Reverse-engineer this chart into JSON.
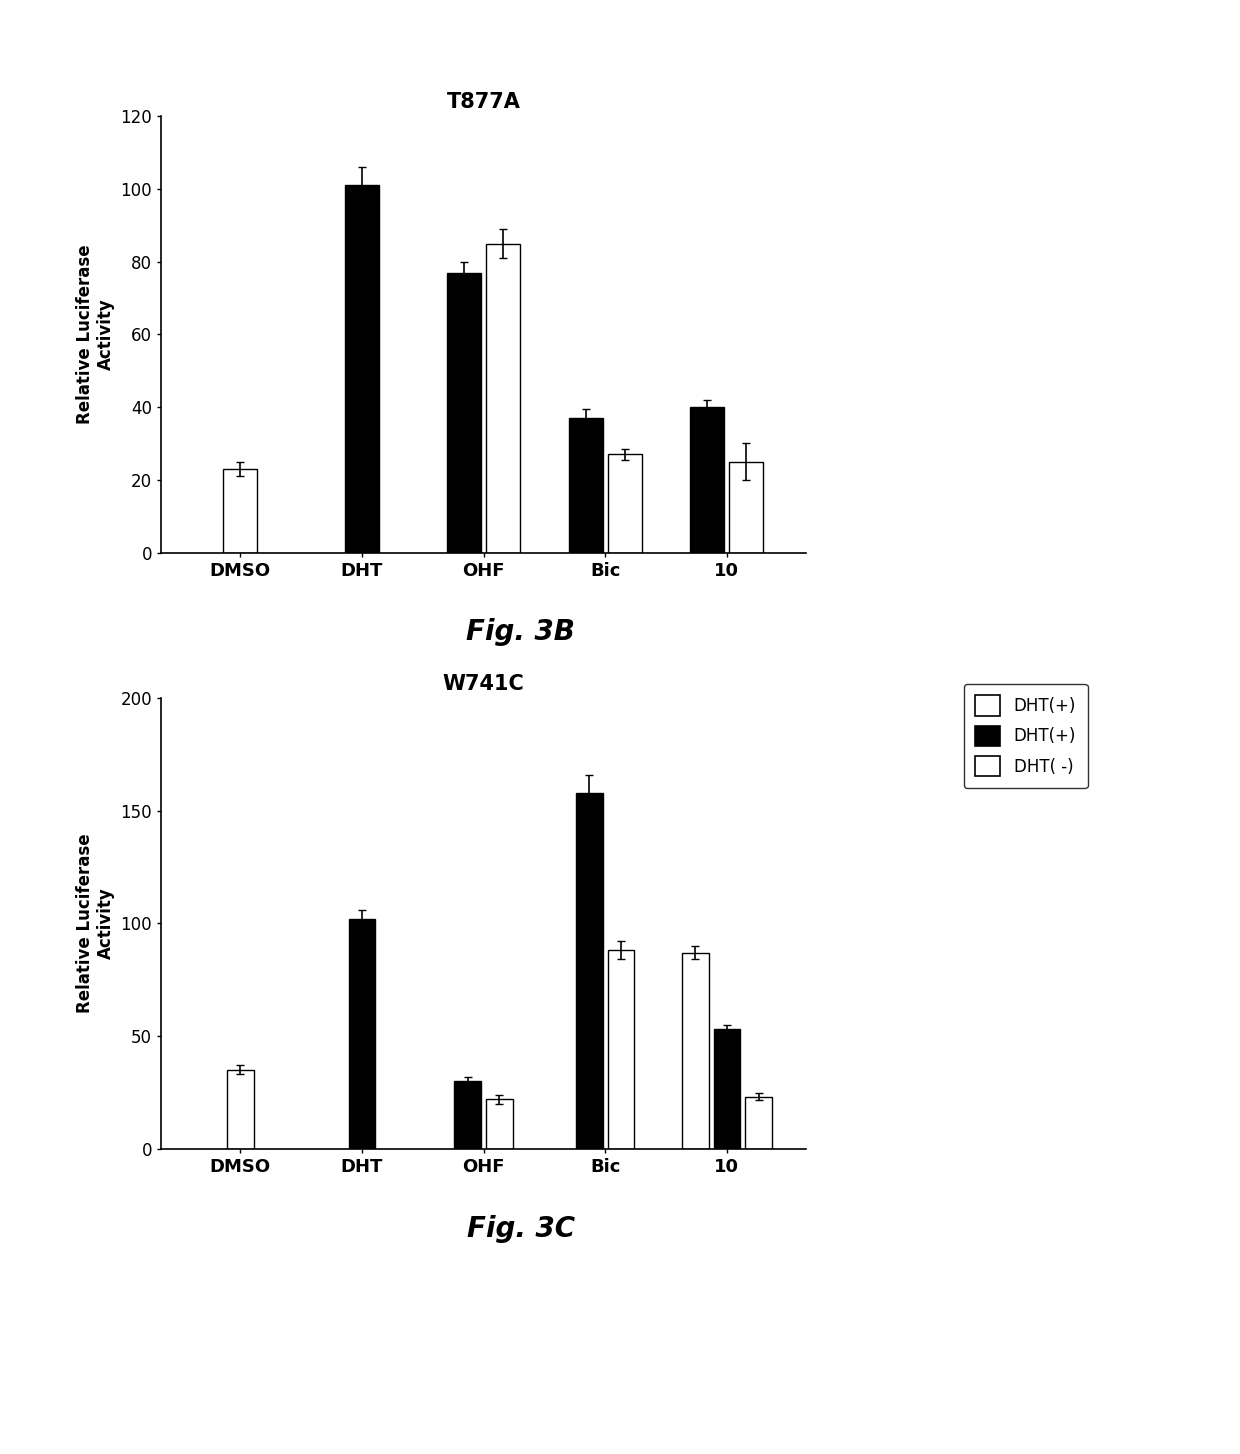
{
  "top": {
    "title": "T877A",
    "ylabel": "Relative Luciferase\nActivity",
    "categories": [
      "DMSO",
      "DHT",
      "OHF",
      "Bic",
      "10"
    ],
    "black_values": [
      null,
      101,
      77,
      37,
      40
    ],
    "black_errors": [
      null,
      5,
      3,
      2.5,
      2
    ],
    "white_values": [
      23,
      null,
      85,
      27,
      25
    ],
    "white_errors": [
      2,
      null,
      4,
      1.5,
      5
    ],
    "ylim": [
      0,
      120
    ],
    "yticks": [
      0,
      20,
      40,
      60,
      80,
      100,
      120
    ]
  },
  "bottom": {
    "title": "W741C",
    "ylabel": "Relative Luciferase\nActivity",
    "categories": [
      "DMSO",
      "DHT",
      "OHF",
      "Bic",
      "10"
    ],
    "white1_values": [
      35,
      null,
      null,
      null,
      87
    ],
    "white1_errors": [
      2,
      null,
      null,
      null,
      3
    ],
    "black_values": [
      null,
      102,
      30,
      158,
      53
    ],
    "black_errors": [
      null,
      4,
      2,
      8,
      2
    ],
    "white2_values": [
      null,
      null,
      22,
      88,
      23
    ],
    "white2_errors": [
      null,
      null,
      2,
      4,
      1.5
    ],
    "ylim": [
      0,
      200
    ],
    "yticks": [
      0,
      50,
      100,
      150,
      200
    ],
    "legend_labels": [
      "DHT(+)",
      "DHT(+)",
      "DHT( -)"
    ],
    "legend_colors": [
      "white",
      "black",
      "white"
    ]
  },
  "fig3b_label": "Fig. 3B",
  "fig3c_label": "Fig. 3C",
  "background_color": "white"
}
